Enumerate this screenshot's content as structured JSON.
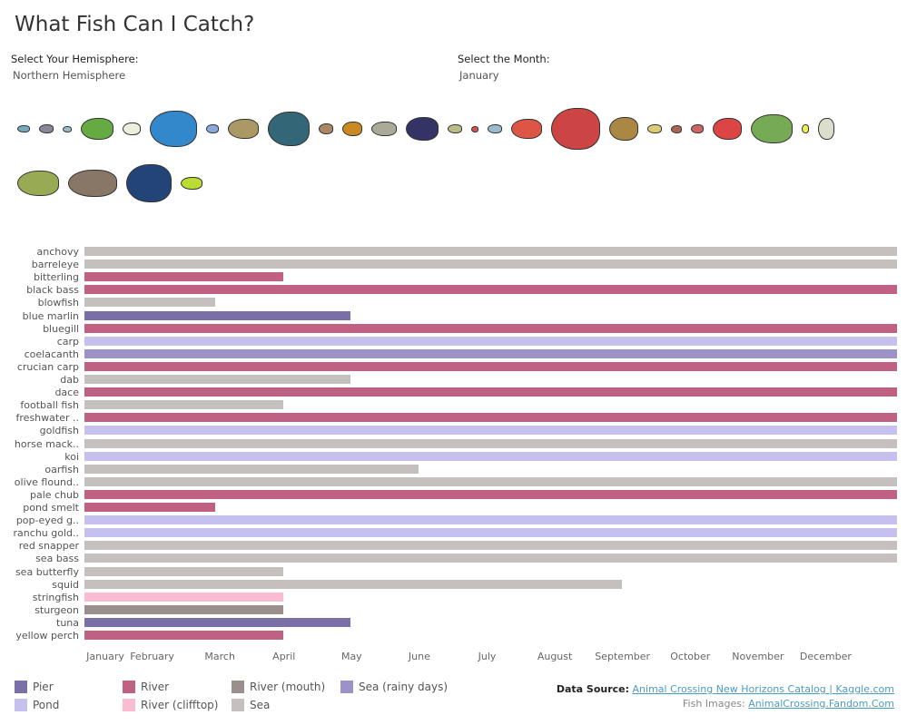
{
  "title": "What Fish Can I Catch?",
  "hemisphere": {
    "label": "Select Your Hemisphere:",
    "value": "Northern Hemisphere"
  },
  "month": {
    "label": "Select the Month:",
    "value": "January"
  },
  "colors": {
    "Pier": "#7b6fa8",
    "Pond": "#c6c0ee",
    "River": "#c06184",
    "River (clifftop)": "#fbbbd0",
    "River (mouth)": "#9a8f8d",
    "Sea": "#c5c0bd",
    "Sea (rainy days)": "#9d92c8"
  },
  "chart_data": {
    "type": "bar",
    "orientation": "horizontal",
    "xlabel": "",
    "ylabel": "",
    "x_ticks": [
      "January",
      "February",
      "March",
      "April",
      "May",
      "June",
      "July",
      "August",
      "September",
      "October",
      "November",
      "December"
    ],
    "xlim": [
      0,
      12
    ],
    "categories": [
      "anchovy",
      "barreleye",
      "bitterling",
      "black bass",
      "blowfish",
      "blue marlin",
      "bluegill",
      "carp",
      "coelacanth",
      "crucian carp",
      "dab",
      "dace",
      "football fish",
      "freshwater ..",
      "goldfish",
      "horse mack..",
      "koi",
      "oarfish",
      "olive flound..",
      "pale chub",
      "pond smelt",
      "pop-eyed g..",
      "ranchu gold..",
      "red snapper",
      "sea bass",
      "sea butterfly",
      "squid",
      "stringfish",
      "sturgeon",
      "tuna",
      "yellow perch"
    ],
    "values": [
      12,
      12,
      3,
      12,
      2,
      4,
      12,
      12,
      12,
      12,
      4,
      12,
      3,
      12,
      12,
      12,
      12,
      5,
      12,
      12,
      2,
      12,
      12,
      12,
      12,
      3,
      8,
      3,
      3,
      4,
      3
    ],
    "location": [
      "Sea",
      "Sea",
      "River",
      "River",
      "Sea",
      "Pier",
      "River",
      "Pond",
      "Sea (rainy days)",
      "River",
      "Sea",
      "River",
      "Sea",
      "River",
      "Pond",
      "Sea",
      "Pond",
      "Sea",
      "Sea",
      "River",
      "River",
      "Pond",
      "Pond",
      "Sea",
      "Sea",
      "Sea",
      "Sea",
      "River (clifftop)",
      "River (mouth)",
      "Pier",
      "River"
    ],
    "legend": [
      "Pier",
      "River",
      "River (mouth)",
      "Sea (rainy days)",
      "Pond",
      "River (clifftop)",
      "Sea"
    ],
    "legend_placement": "bottom-left"
  },
  "footer": {
    "source_label": "Data Source:",
    "source_link": "Animal Crossing New Horizons Catalog | Kaggle.com",
    "images_label": "Fish Images:",
    "images_link": "AnimalCrossing.Fandom.Com"
  }
}
